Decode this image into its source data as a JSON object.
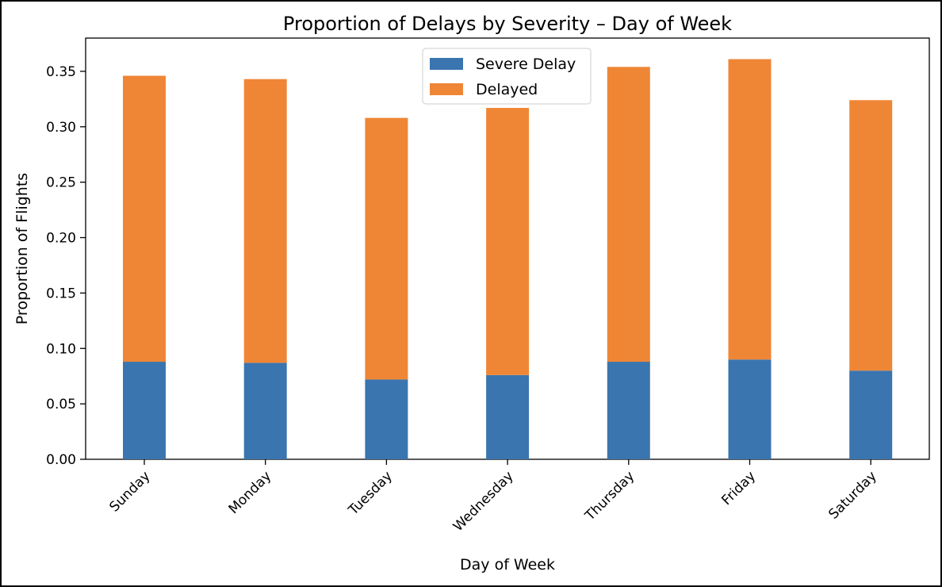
{
  "chart_data": {
    "type": "bar",
    "stacked": true,
    "title": "Proportion of Delays by Severity – Day of Week",
    "xlabel": "Day of Week",
    "ylabel": "Proportion of Flights",
    "categories": [
      "Sunday",
      "Monday",
      "Tuesday",
      "Wednesday",
      "Thursday",
      "Friday",
      "Saturday"
    ],
    "series": [
      {
        "name": "Severe Delay",
        "color": "#3a75af",
        "values": [
          0.088,
          0.087,
          0.072,
          0.076,
          0.088,
          0.09,
          0.08
        ]
      },
      {
        "name": "Delayed",
        "color": "#ef8636",
        "values": [
          0.258,
          0.256,
          0.236,
          0.241,
          0.266,
          0.271,
          0.244
        ]
      }
    ],
    "ylim": [
      0,
      0.38
    ],
    "yticks": [
      "0.00",
      "0.05",
      "0.10",
      "0.15",
      "0.20",
      "0.25",
      "0.30",
      "0.35"
    ],
    "legend_position": "top-center",
    "grid": false
  }
}
